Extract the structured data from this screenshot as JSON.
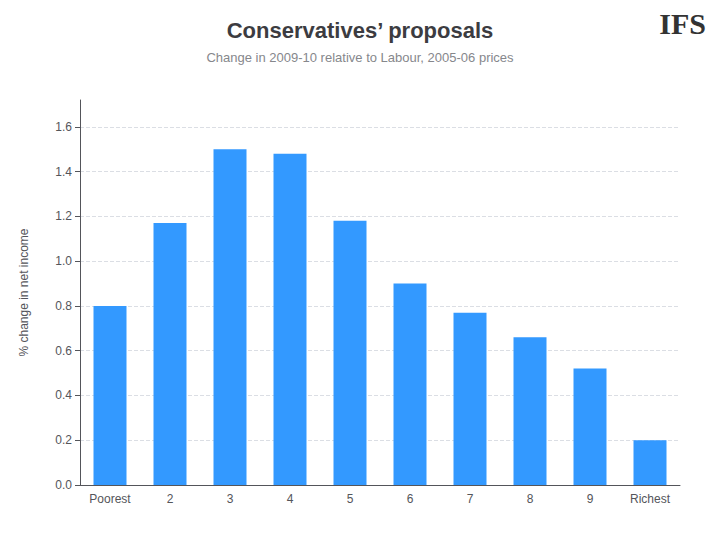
{
  "chart_data": {
    "type": "bar",
    "title": "Conservatives’ proposals",
    "subtitle": "Change in 2009-10 relative to Labour, 2005-06 prices",
    "annotation": "IFS",
    "ylabel": "% change in net income",
    "categories": [
      "Poorest",
      "2",
      "3",
      "4",
      "5",
      "6",
      "7",
      "8",
      "9",
      "Richest"
    ],
    "values": [
      0.8,
      1.17,
      1.5,
      1.48,
      1.18,
      0.9,
      0.77,
      0.66,
      0.52,
      0.2
    ],
    "color": "#3399FF",
    "ylim": [
      0.0,
      1.72
    ],
    "yticks": [
      {
        "value": 0.0,
        "label": "0.0"
      },
      0.2,
      0.4,
      0.6,
      0.8,
      {
        "value": 1.0,
        "label": "1.0"
      },
      1.2,
      1.4,
      1.6
    ],
    "grid": true
  }
}
